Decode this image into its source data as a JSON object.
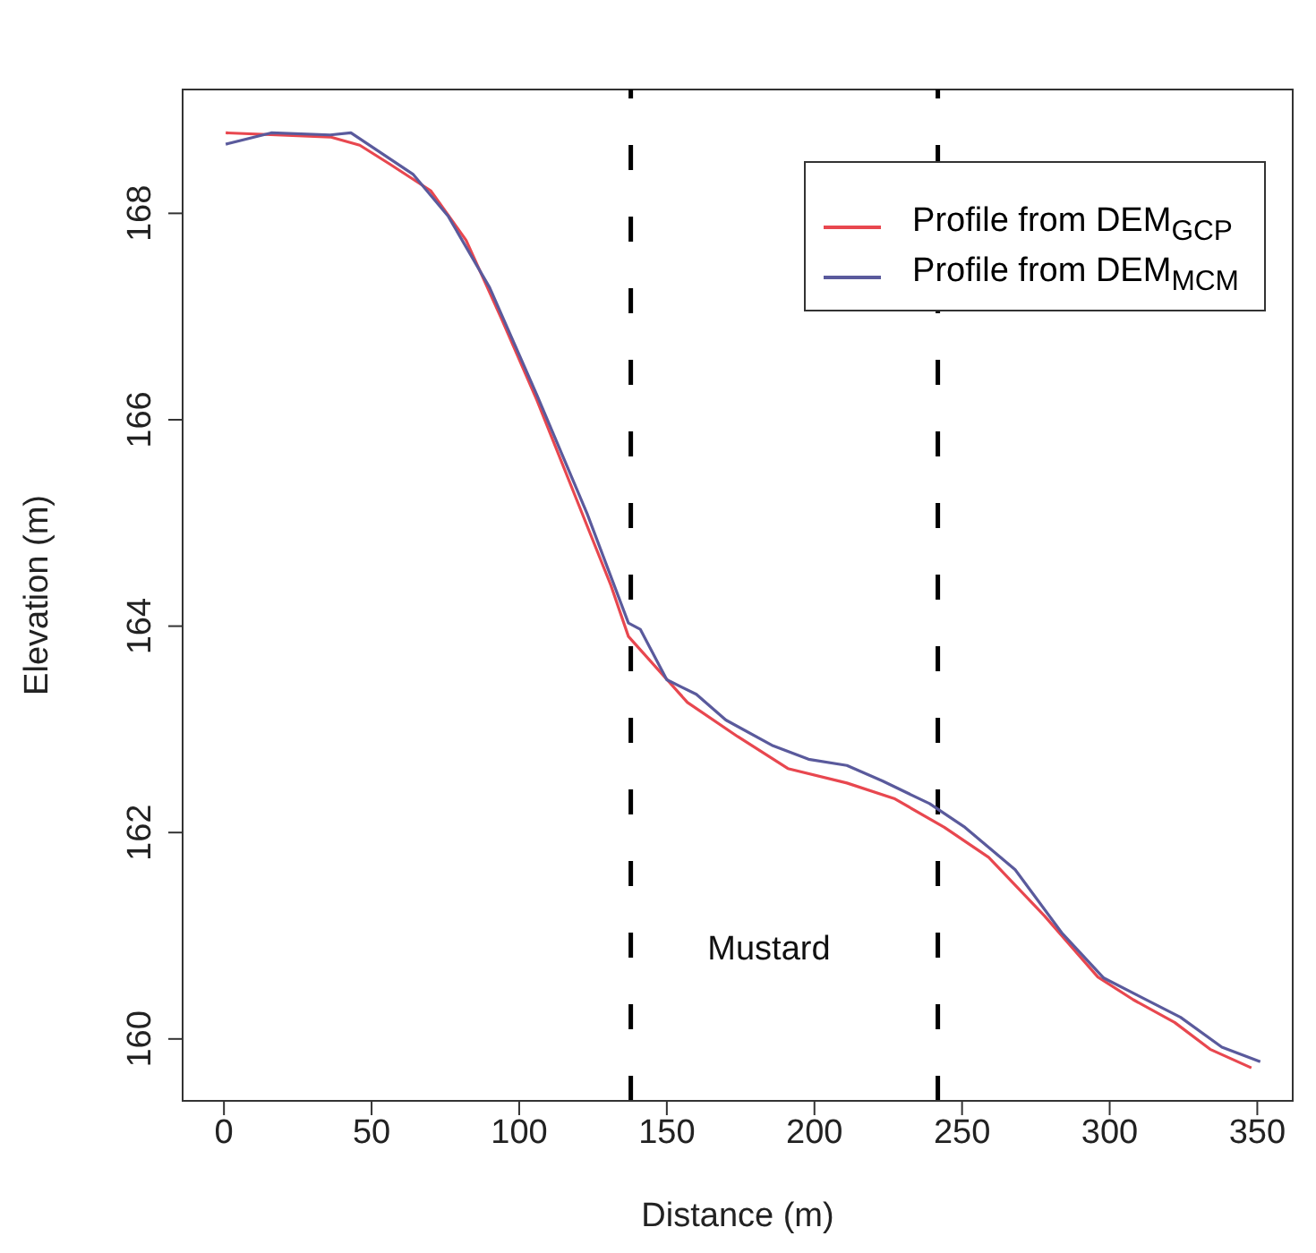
{
  "chart_data": {
    "type": "line",
    "xlabel": "Distance (m)",
    "ylabel": "Elevation (m)",
    "xlim": [
      -14,
      362
    ],
    "ylim": [
      159.4,
      169.2
    ],
    "xticks": [
      0,
      50,
      100,
      150,
      200,
      250,
      300,
      350
    ],
    "yticks": [
      160,
      162,
      164,
      166,
      168
    ],
    "legend": "top right",
    "line_style": "solid",
    "marker": "none",
    "series": [
      {
        "name": "Profile from DEM$_{GCP}$",
        "color": "#e8474f",
        "x": [
          0.6,
          36,
          46,
          56,
          70,
          82,
          94,
          106,
          118,
          131,
          137,
          157,
          174,
          191,
          211,
          227,
          244,
          259,
          278,
          296,
          308,
          322,
          334,
          348
        ],
        "values": [
          168.78,
          168.74,
          168.66,
          168.48,
          168.22,
          167.74,
          166.98,
          166.19,
          165.33,
          164.4,
          163.9,
          163.26,
          162.93,
          162.62,
          162.48,
          162.33,
          162.05,
          161.76,
          161.19,
          160.6,
          160.38,
          160.16,
          159.9,
          159.72
        ]
      },
      {
        "name": "Profile from DEM$_{MCM}$",
        "color": "#5a5a9c",
        "x": [
          0.6,
          16,
          36,
          43,
          64,
          76,
          90,
          106,
          123,
          137,
          141,
          150,
          160,
          170,
          186,
          198,
          211,
          223,
          239,
          251,
          268,
          284,
          298,
          324,
          338,
          351
        ],
        "values": [
          168.67,
          168.78,
          168.76,
          168.78,
          168.38,
          167.97,
          167.28,
          166.24,
          165.09,
          164.03,
          163.97,
          163.48,
          163.34,
          163.09,
          162.84,
          162.71,
          162.65,
          162.5,
          162.28,
          162.05,
          161.64,
          161.02,
          160.59,
          160.21,
          159.92,
          159.78
        ]
      }
    ],
    "ref_lines": [
      {
        "axis": "x",
        "value": 137.8,
        "color": "#000000",
        "line_style": "dashed"
      },
      {
        "axis": "x",
        "value": 241.8,
        "color": "#000000",
        "line_style": "dashed"
      }
    ],
    "annotations": [
      "Mustard"
    ]
  }
}
